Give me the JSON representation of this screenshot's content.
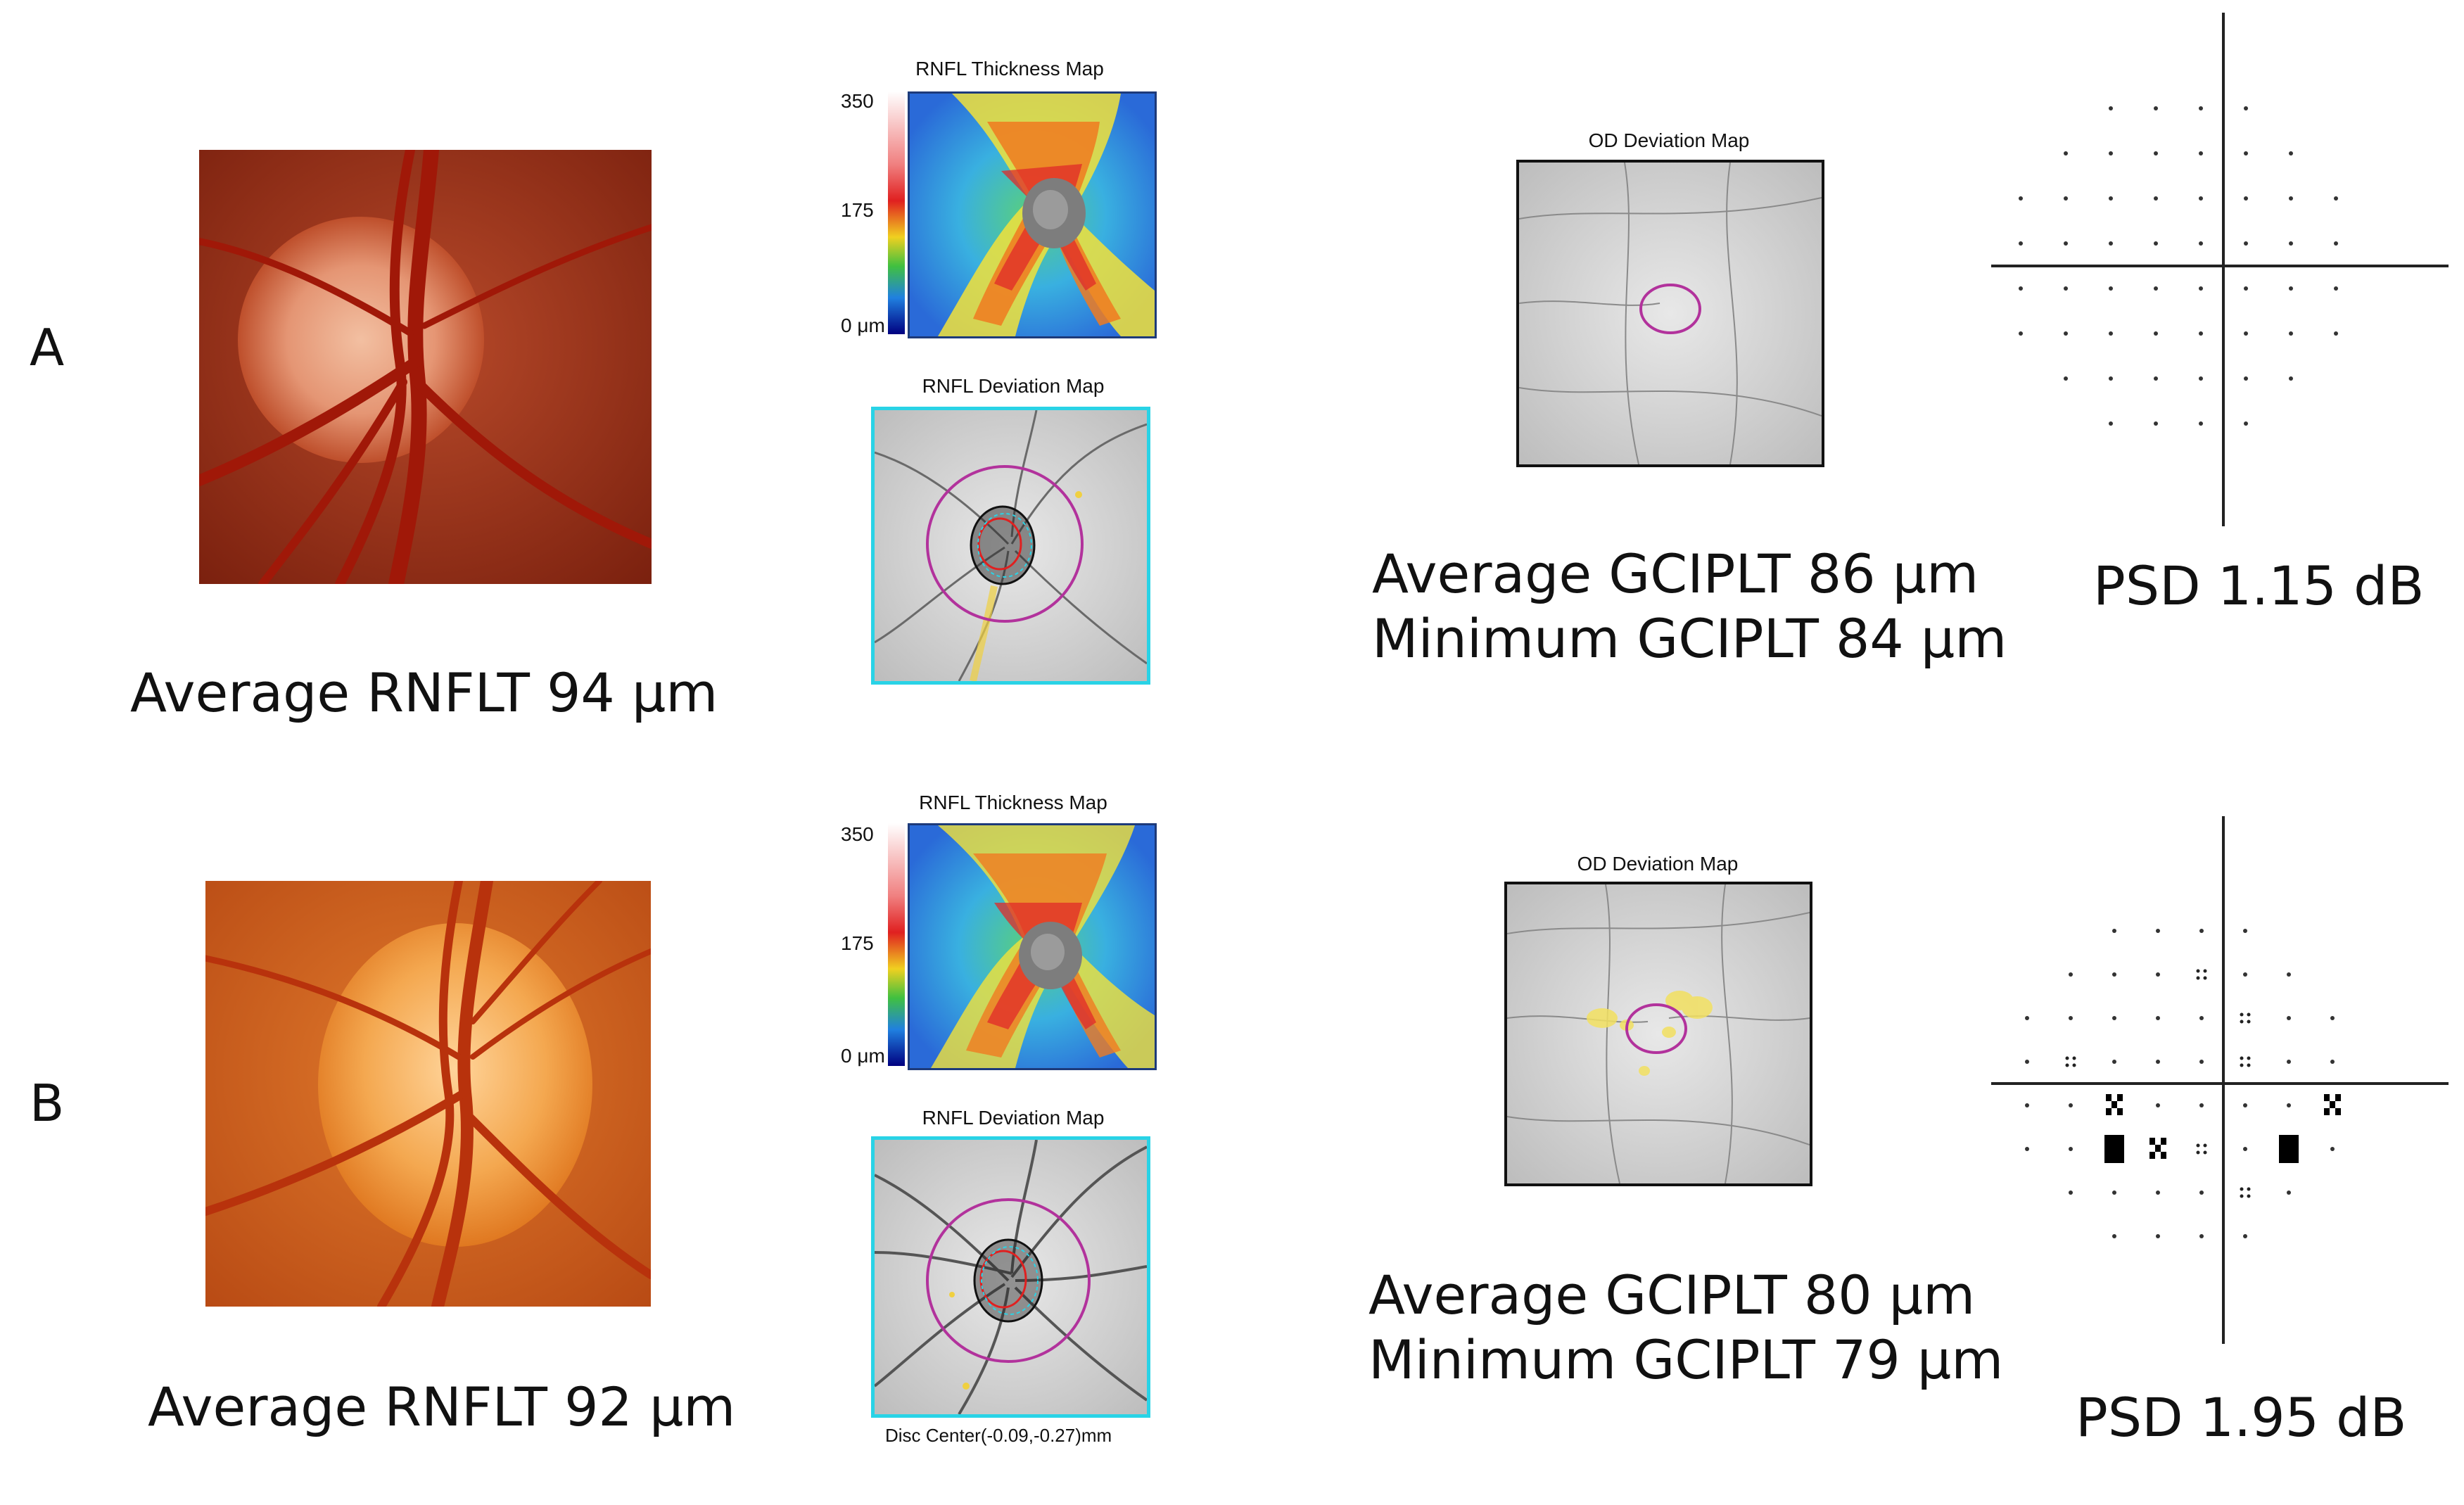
{
  "panels": [
    {
      "label": "A",
      "rnflt_caption": "Average RNFLT 94 μm",
      "thickness_map": {
        "title": "RNFL Thickness Map",
        "scale_ticks": [
          "350",
          "175",
          "0 μm"
        ]
      },
      "deviation_map": {
        "title": "RNFL Deviation Map"
      },
      "od_map": {
        "title": "OD Deviation Map"
      },
      "gciplt_average": "Average  GCIPLT 86 μm",
      "gciplt_minimum": "Minimum  GCIPLT 84 μm",
      "psd": "PSD 1.15 dB"
    },
    {
      "label": "B",
      "rnflt_caption": "Average RNFLT 92 μm",
      "thickness_map": {
        "title": "RNFL Thickness Map",
        "scale_ticks": [
          "350",
          "175",
          "0 μm"
        ]
      },
      "deviation_map": {
        "title": "RNFL Deviation Map",
        "footer": "Disc Center(-0.09,-0.27)mm"
      },
      "od_map": {
        "title": "OD Deviation Map"
      },
      "gciplt_average": "Average  GCIPLT 80 μm",
      "gciplt_minimum": "Minimum  GCIPLT 79 μm",
      "psd": "PSD 1.95 dB"
    }
  ],
  "colors": {
    "border_cyan": "#29d3e6",
    "magenta_ring": "#b2329c",
    "fundus_a": "#a8321c",
    "fundus_b": "#d86a1c"
  }
}
